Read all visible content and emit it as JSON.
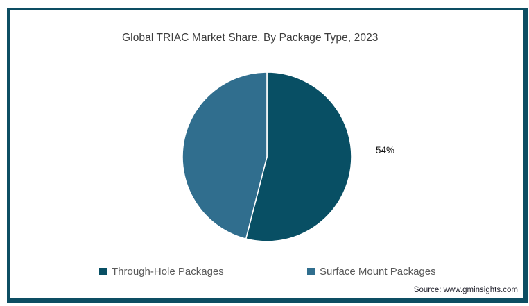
{
  "frame": {
    "border_color": "#0d4e63",
    "background": "#ffffff"
  },
  "title": "Global TRIAC Market Share, By Package Type, 2023",
  "source": "Source: www.gminsights.com",
  "chart_data": {
    "type": "pie",
    "title": "Global TRIAC Market Share, By Package Type, 2023",
    "unit": "%",
    "direction": "clockwise",
    "start_angle": "12 o'clock",
    "legend_position": "bottom",
    "slice_divider_color": "#ffffff",
    "slices": [
      {
        "label": "Through-Hole Packages",
        "value": 54,
        "color": "#084f64",
        "data_label": "54%"
      },
      {
        "label": "Surface Mount Packages",
        "value": 46,
        "color": "#306e8e",
        "data_label": ""
      }
    ]
  }
}
